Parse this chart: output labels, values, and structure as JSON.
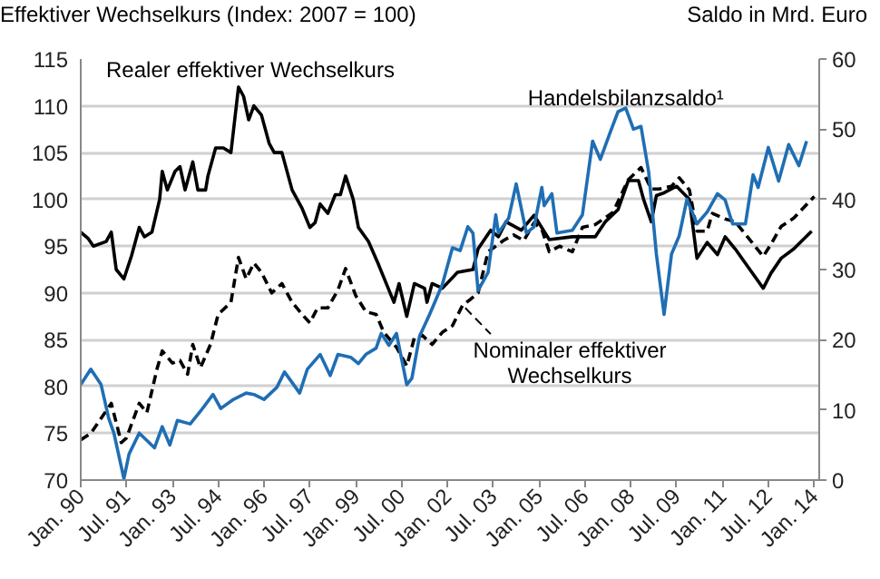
{
  "chart_data": {
    "type": "line",
    "ylabel": "Effektiver Wechselkurs (Index: 2007 = 100)",
    "y2label": "Saldo in Mrd. Euro",
    "xlim": [
      "1990-01",
      "2014-03"
    ],
    "xticks": [
      {
        "value": "1990-01",
        "label": "Jan. 90"
      },
      {
        "value": "1991-07",
        "label": "Jul. 91"
      },
      {
        "value": "1993-01",
        "label": "Jan. 93"
      },
      {
        "value": "1994-07",
        "label": "Jul. 94"
      },
      {
        "value": "1996-01",
        "label": "Jan. 96"
      },
      {
        "value": "1997-07",
        "label": "Jul. 97"
      },
      {
        "value": "1999-01",
        "label": "Jan. 99"
      },
      {
        "value": "2000-07",
        "label": "Jul. 00"
      },
      {
        "value": "2002-01",
        "label": "Jan. 02"
      },
      {
        "value": "2003-07",
        "label": "Jul. 03"
      },
      {
        "value": "2005-01",
        "label": "Jan. 05"
      },
      {
        "value": "2006-07",
        "label": "Jul. 06"
      },
      {
        "value": "2008-01",
        "label": "Jan. 08"
      },
      {
        "value": "2009-07",
        "label": "Jul. 09"
      },
      {
        "value": "2011-01",
        "label": "Jan. 11"
      },
      {
        "value": "2012-07",
        "label": "Jul. 12"
      },
      {
        "value": "2014-01",
        "label": "Jan. 14"
      }
    ],
    "ylim": [
      70,
      115
    ],
    "yticks": [
      70,
      75,
      80,
      85,
      90,
      95,
      100,
      105,
      110,
      115
    ],
    "y2lim": [
      0,
      60
    ],
    "y2ticks": [
      0,
      10,
      20,
      30,
      40,
      50,
      60
    ],
    "grid": "y",
    "series": [
      {
        "name": "Realer effektiver Wechselkurs",
        "color": "#000000",
        "line_style": "solid",
        "x": [
          "1990-01",
          "1990-04",
          "1990-06",
          "1990-11",
          "1991-01",
          "1991-03",
          "1991-06",
          "1991-09",
          "1991-12",
          "1992-02",
          "1992-05",
          "1992-08",
          "1992-09",
          "1992-11",
          "1993-02",
          "1993-04",
          "1993-06",
          "1993-09",
          "1993-11",
          "1994-02",
          "1994-03",
          "1994-06",
          "1994-09",
          "1994-12",
          "1995-03",
          "1995-05",
          "1995-07",
          "1995-09",
          "1995-12",
          "1996-03",
          "1996-05",
          "1996-08",
          "1996-12",
          "1997-04",
          "1997-07",
          "1997-09",
          "1997-11",
          "1998-02",
          "1998-05",
          "1998-07",
          "1998-09",
          "1998-12",
          "1999-02",
          "1999-06",
          "1999-10",
          "2000-04",
          "2000-06",
          "2000-09",
          "2000-12",
          "2001-04",
          "2001-05",
          "2001-07",
          "2001-11",
          "2002-05",
          "2002-11",
          "2003-01",
          "2003-06",
          "2003-09",
          "2003-12",
          "2004-06",
          "2004-11",
          "2005-05",
          "2006-02",
          "2006-11",
          "2007-03",
          "2007-08",
          "2007-12",
          "2008-04",
          "2008-06",
          "2008-09",
          "2008-11",
          "2009-02",
          "2009-07",
          "2009-12",
          "2010-03",
          "2010-07",
          "2010-11",
          "2011-02",
          "2011-06",
          "2011-12",
          "2012-05",
          "2012-08",
          "2012-12",
          "2013-05",
          "2013-12"
        ],
        "values": [
          96.5,
          95.8,
          95,
          95.5,
          96.5,
          92.5,
          91.5,
          94,
          97,
          96,
          96.5,
          100,
          103,
          101,
          103,
          103.5,
          101,
          104,
          101,
          101,
          102.5,
          105.5,
          105.5,
          105,
          112,
          111,
          108.5,
          110,
          109,
          106,
          105,
          105,
          101,
          99,
          97,
          97.5,
          99.5,
          98.5,
          100.5,
          100.5,
          102.5,
          100,
          97,
          95.5,
          93,
          89,
          91,
          87.5,
          91,
          90.5,
          89,
          91,
          90.5,
          92.2,
          92.5,
          94.7,
          96.7,
          96,
          97.6,
          96.7,
          98.3,
          95.7,
          96,
          96,
          97.6,
          98.9,
          102,
          102,
          100,
          97.6,
          100.4,
          100.7,
          101.4,
          100,
          93.7,
          95.4,
          94.1,
          96,
          94.7,
          92.4,
          90.5,
          92.1,
          93.7,
          94.7,
          96.6
        ]
      },
      {
        "name": "Nominaler effektiver Wechselkurs",
        "color": "#000000",
        "line_style": "dashed",
        "x": [
          "1990-01",
          "1990-05",
          "1990-09",
          "1991-01",
          "1991-05",
          "1991-07",
          "1991-12",
          "1992-03",
          "1992-07",
          "1992-09",
          "1993-01",
          "1993-04",
          "1993-07",
          "1993-09",
          "1993-12",
          "1994-04",
          "1994-07",
          "1994-12",
          "1995-03",
          "1995-06",
          "1995-09",
          "1995-12",
          "1996-04",
          "1996-08",
          "1996-12",
          "1997-04",
          "1997-07",
          "1997-10",
          "1998-02",
          "1998-06",
          "1998-09",
          "1999-01",
          "1999-05",
          "1999-09",
          "1999-12",
          "2000-05",
          "2000-09",
          "2000-12",
          "2001-03",
          "2001-07",
          "2001-11",
          "2002-03",
          "2002-07",
          "2002-10",
          "2003-01",
          "2003-05",
          "2003-11",
          "2004-03",
          "2004-07",
          "2004-11",
          "2005-02",
          "2005-05",
          "2005-09",
          "2006-02",
          "2006-06",
          "2006-11",
          "2007-06",
          "2007-12",
          "2008-05",
          "2008-09",
          "2008-12",
          "2009-05",
          "2009-08",
          "2009-12",
          "2010-03",
          "2010-07",
          "2010-09",
          "2011-02",
          "2011-06",
          "2011-12",
          "2012-05",
          "2012-08",
          "2012-12",
          "2013-05",
          "2014-01"
        ],
        "values": [
          74.3,
          75,
          76.6,
          78.2,
          74,
          74.5,
          78.2,
          77.2,
          81.9,
          83.8,
          82.5,
          82.8,
          81.3,
          84.5,
          82,
          84.5,
          87.7,
          89,
          93.8,
          91.5,
          93.2,
          92.2,
          90,
          91,
          89,
          87.7,
          86.8,
          88.4,
          88.4,
          90.3,
          92.6,
          89.7,
          88,
          87.7,
          85.8,
          84.2,
          82.2,
          85.2,
          85.5,
          84.5,
          85.8,
          86.5,
          88.7,
          89.3,
          90,
          94.4,
          95.6,
          96.2,
          95.6,
          97.5,
          96.8,
          94.4,
          95,
          94.4,
          97,
          97.3,
          98.6,
          102.1,
          103.4,
          101.1,
          101.1,
          101.4,
          102.3,
          101,
          96.6,
          96.6,
          98.5,
          97.9,
          97.6,
          95.6,
          93.9,
          95.2,
          97.1,
          98,
          100.3
        ]
      },
      {
        "name": "Handelsbilanzsaldo¹",
        "color": "#1f6eb4",
        "line_style": "solid",
        "axis": "y2",
        "x": [
          "1990-01",
          "1990-05",
          "1990-09",
          "1990-12",
          "1991-02",
          "1991-06",
          "1991-08",
          "1991-12",
          "1992-06",
          "1992-09",
          "1992-12",
          "1993-03",
          "1993-08",
          "1993-12",
          "1994-05",
          "1994-08",
          "1995-01",
          "1995-06",
          "1995-09",
          "1996-01",
          "1996-06",
          "1996-09",
          "1997-03",
          "1997-06",
          "1997-11",
          "1998-03",
          "1998-06",
          "1998-11",
          "1999-02",
          "1999-05",
          "1999-09",
          "1999-11",
          "2000-02",
          "2000-05",
          "2000-09",
          "2000-11",
          "2001-02",
          "2001-06",
          "2001-11",
          "2002-03",
          "2002-06",
          "2002-09",
          "2002-11",
          "2003-01",
          "2003-05",
          "2003-08",
          "2003-09",
          "2004-01",
          "2004-04",
          "2004-08",
          "2004-11",
          "2005-02",
          "2005-03",
          "2005-06",
          "2005-08",
          "2006-02",
          "2006-06",
          "2006-10",
          "2007-01",
          "2007-05",
          "2007-08",
          "2007-11",
          "2008-02",
          "2008-05",
          "2008-08",
          "2008-11",
          "2009-02",
          "2009-05",
          "2009-08",
          "2009-11",
          "2010-03",
          "2010-07",
          "2010-11",
          "2011-02",
          "2011-05",
          "2011-10",
          "2012-01",
          "2012-03",
          "2012-07",
          "2012-11",
          "2013-03",
          "2013-07",
          "2013-10"
        ],
        "values": [
          13.6,
          15.8,
          13.6,
          8.8,
          6.7,
          0.2,
          3.7,
          6.7,
          4.6,
          7.6,
          5,
          8.5,
          8,
          9.8,
          12.2,
          10.2,
          11.5,
          12.4,
          12.2,
          11.5,
          13.2,
          15.4,
          12.4,
          15.8,
          17.9,
          14.9,
          17.9,
          17.5,
          16.6,
          17.9,
          18.8,
          20.9,
          19.2,
          20.9,
          13.6,
          14.5,
          20.5,
          23.6,
          27.9,
          33.1,
          32.7,
          36.1,
          35.2,
          27,
          29.6,
          37.8,
          35.2,
          37.3,
          42.2,
          35.2,
          36.1,
          41.7,
          39.1,
          40.8,
          35.2,
          35.6,
          37.8,
          48.3,
          45.7,
          49.6,
          52.5,
          53,
          50,
          50.4,
          43.9,
          32.2,
          23.6,
          32.2,
          34.8,
          40,
          36.5,
          38.2,
          40.8,
          39.9,
          36.5,
          36.5,
          43.5,
          41.7,
          47.4,
          42.6,
          47.8,
          44.8,
          48.3
        ]
      }
    ]
  }
}
